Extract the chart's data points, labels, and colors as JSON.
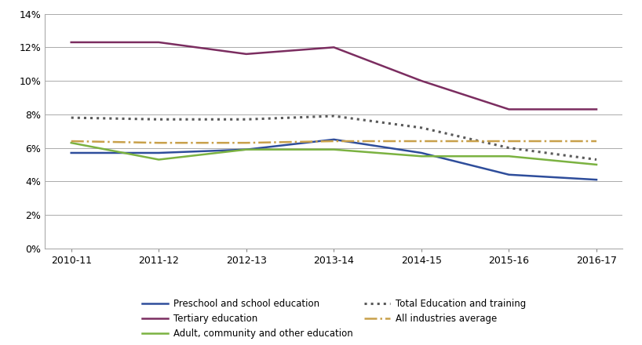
{
  "x_labels": [
    "2010-11",
    "2011-12",
    "2012-13",
    "2013-14",
    "2014-15",
    "2015-16",
    "2016-17"
  ],
  "x_positions": [
    0,
    1,
    2,
    3,
    4,
    5,
    6
  ],
  "series_order": [
    "Preschool and school education",
    "Tertiary education",
    "Adult, community and other education",
    "Total Education and training",
    "All industries average"
  ],
  "series": {
    "Preschool and school education": {
      "values": [
        0.057,
        0.057,
        0.059,
        0.065,
        0.057,
        0.044,
        0.041
      ],
      "color": "#2E4D9B",
      "linestyle": "-",
      "linewidth": 1.8
    },
    "Tertiary education": {
      "values": [
        0.123,
        0.123,
        0.116,
        0.12,
        0.1,
        0.083,
        0.083
      ],
      "color": "#7B2D60",
      "linestyle": "-",
      "linewidth": 1.8
    },
    "Adult, community and other education": {
      "values": [
        0.063,
        0.053,
        0.059,
        0.059,
        0.055,
        0.055,
        0.05
      ],
      "color": "#7BB241",
      "linestyle": "-",
      "linewidth": 1.8
    },
    "Total Education and training": {
      "values": [
        0.078,
        0.077,
        0.077,
        0.079,
        0.072,
        0.06,
        0.053
      ],
      "color": "#595959",
      "linestyle": ":",
      "linewidth": 2.2
    },
    "All industries average": {
      "values": [
        0.064,
        0.063,
        0.063,
        0.064,
        0.064,
        0.064,
        0.064
      ],
      "color": "#C8A04A",
      "linestyle": "-.",
      "linewidth": 1.8
    }
  },
  "ylim": [
    0,
    0.14
  ],
  "yticks": [
    0.0,
    0.02,
    0.04,
    0.06,
    0.08,
    0.1,
    0.12,
    0.14
  ],
  "ytick_labels": [
    "0%",
    "2%",
    "4%",
    "6%",
    "8%",
    "10%",
    "12%",
    "14%"
  ],
  "background_color": "#ffffff",
  "grid_color": "#aaaaaa",
  "legend_col1": [
    "Preschool and school education",
    "Adult, community and other education",
    "All industries average"
  ],
  "legend_col2": [
    "Tertiary education",
    "Total Education and training"
  ]
}
